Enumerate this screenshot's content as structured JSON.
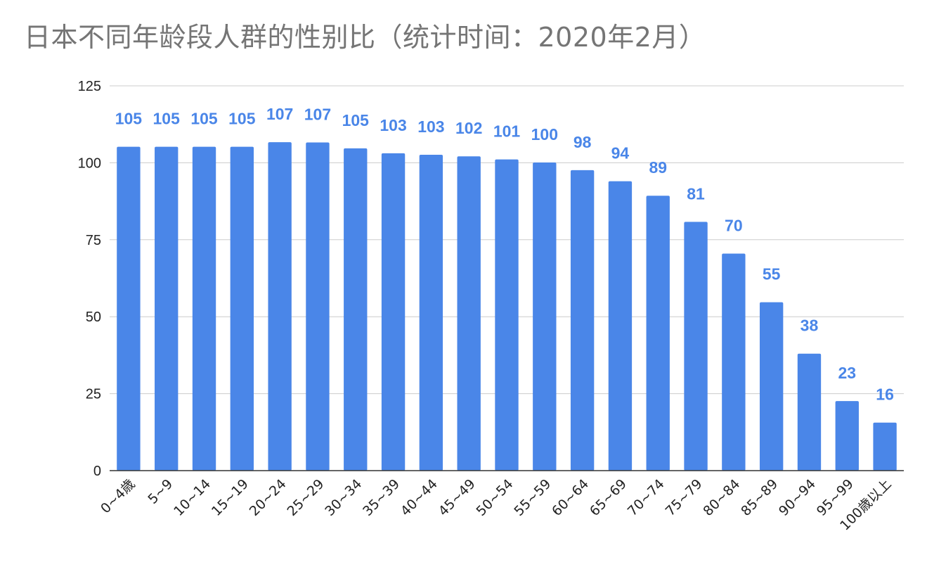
{
  "chart_data": {
    "type": "bar",
    "title": "日本不同年龄段人群的性别比（统计时间：2020年2月）",
    "xlabel": "",
    "ylabel": "",
    "ylim": [
      0,
      125
    ],
    "yticks": [
      0,
      25,
      50,
      75,
      100,
      125
    ],
    "grid": true,
    "legend": "none",
    "bar_color": "#4a86e8",
    "label_color": "#4a86e8",
    "categories": [
      "0~4歳",
      "5~9",
      "10~14",
      "15~19",
      "20~24",
      "25~29",
      "30~34",
      "35~39",
      "40~44",
      "45~49",
      "50~54",
      "55~59",
      "60~64",
      "65~69",
      "70~74",
      "75~79",
      "80~84",
      "85~89",
      "90~94",
      "95~99",
      "100歳以上"
    ],
    "values": [
      105.2,
      105.2,
      105.2,
      105.2,
      106.7,
      106.6,
      104.7,
      103.1,
      102.6,
      102.1,
      101.1,
      100.1,
      97.6,
      94.0,
      89.3,
      80.8,
      70.5,
      54.7,
      38.0,
      22.6,
      15.6
    ],
    "value_labels": [
      "105",
      "105",
      "105",
      "105",
      "107",
      "107",
      "105",
      "103",
      "103",
      "102",
      "101",
      "100",
      "98",
      "94",
      "89",
      "81",
      "70",
      "55",
      "38",
      "23",
      "16"
    ]
  }
}
